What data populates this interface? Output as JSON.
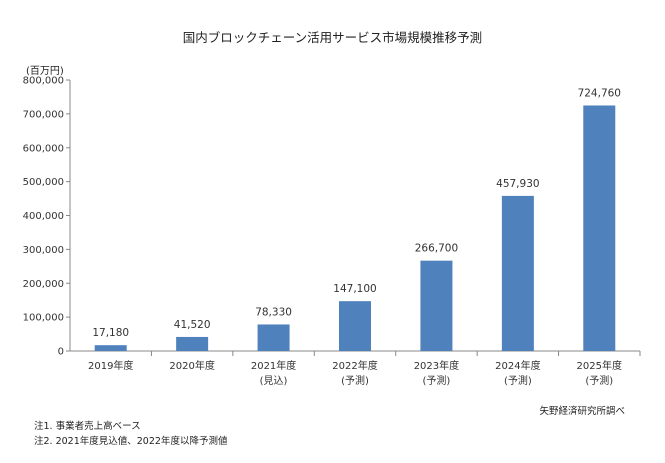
{
  "chart_data": {
    "type": "bar",
    "title": "国内ブロックチェーン活用サービス市場規模推移予測",
    "unit_label": "(百万円)",
    "categories": [
      {
        "label": "2019年度",
        "sub": ""
      },
      {
        "label": "2020年度",
        "sub": ""
      },
      {
        "label": "2021年度",
        "sub": "(見込)"
      },
      {
        "label": "2022年度",
        "sub": "(予測)"
      },
      {
        "label": "2023年度",
        "sub": "(予測)"
      },
      {
        "label": "2024年度",
        "sub": "(予測)"
      },
      {
        "label": "2025年度",
        "sub": "(予測)"
      }
    ],
    "values": [
      17180,
      41520,
      78330,
      147100,
      266700,
      457930,
      724760
    ],
    "value_labels": [
      "17,180",
      "41,520",
      "78,330",
      "147,100",
      "266,700",
      "457,930",
      "724,760"
    ],
    "ylim": [
      0,
      800000
    ],
    "yticks": [
      "0",
      "100,000",
      "200,000",
      "300,000",
      "400,000",
      "500,000",
      "600,000",
      "700,000",
      "800,000"
    ],
    "bar_color": "#4f81bd",
    "grid": false,
    "legend": "none"
  },
  "source": "矢野経済研究所調べ",
  "notes": [
    "注1. 事業者売上高ベース",
    "注2. 2021年度見込値、2022年度以降予測値"
  ]
}
